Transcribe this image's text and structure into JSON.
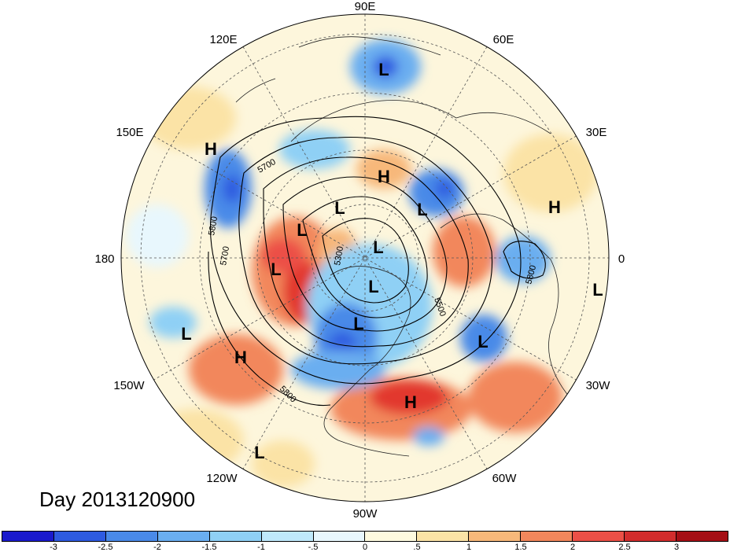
{
  "title": "Day 2013120900",
  "map": {
    "projection": "north-polar-stereographic",
    "lon_labels": {
      "lon_90E": "90E",
      "lon_60E": "60E",
      "lon_30E": "30E",
      "lon_0": "0",
      "lon_30W": "30W",
      "lon_60W": "60W",
      "lon_90W": "90W",
      "lon_120W": "120W",
      "lon_150W": "150W",
      "lon_180": "180",
      "lon_150E": "150E",
      "lon_120E": "120E"
    },
    "contour_labels": [
      "5700",
      "5800",
      "5700",
      "5300",
      "5500",
      "5800",
      "5800"
    ],
    "pressure_systems": [
      "L",
      "H",
      "H",
      "L",
      "L",
      "H",
      "L",
      "L",
      "L",
      "L",
      "L",
      "L",
      "L",
      "L",
      "H",
      "H",
      "L"
    ]
  },
  "colorbar": {
    "colors": [
      "#1a1acc",
      "#2e5be0",
      "#4a8ae8",
      "#6aaef0",
      "#8fd0f5",
      "#bfe9fb",
      "#e8f7fd",
      "#fefadf",
      "#fbe3a6",
      "#f7b87a",
      "#f2875c",
      "#ec5047",
      "#d22d2d",
      "#a50f15"
    ],
    "tick_labels": [
      "-3",
      "-2.5",
      "-2",
      "-1.5",
      "-1",
      "-.5",
      "0",
      ".5",
      "1",
      "1.5",
      "2",
      "2.5",
      "3"
    ]
  }
}
